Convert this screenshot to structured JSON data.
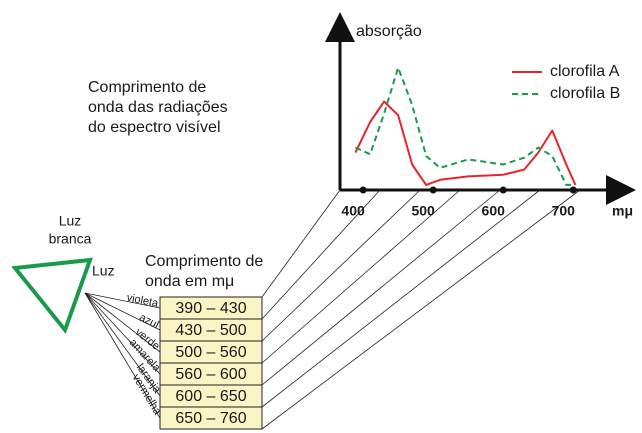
{
  "chart_data": {
    "type": "line",
    "ylabel": "absorção",
    "xlabel": "mμ",
    "x": [
      389,
      410,
      430,
      450,
      470,
      490,
      510,
      550,
      600,
      630,
      650,
      670,
      690,
      703
    ],
    "series": [
      {
        "name": "clorofila A",
        "color": "#e8242b",
        "dash": false,
        "values": [
          22,
          40,
          52,
          44,
          15,
          3,
          6,
          8,
          9,
          12,
          22,
          35,
          15,
          3
        ]
      },
      {
        "name": "clorofila B",
        "color": "#1a9a4a",
        "dash": true,
        "values": [
          25,
          21,
          45,
          72,
          50,
          20,
          13,
          18,
          15,
          19,
          25,
          20,
          3,
          3
        ]
      }
    ],
    "xlim": [
      367,
      781
    ],
    "ylim": [
      0,
      100
    ],
    "xticks": [
      400,
      500,
      600,
      700
    ]
  },
  "caption": [
    "Comprimento de",
    "onda das radiações",
    "do espectro visível"
  ],
  "prism": {
    "label": [
      "Luz",
      "branca"
    ],
    "beam": "Luz"
  },
  "table": {
    "title": [
      "Comprimento de",
      "onda em mμ"
    ],
    "rows": [
      {
        "color": "violeta",
        "range": "390 – 430"
      },
      {
        "color": "azul",
        "range": "430 – 500"
      },
      {
        "color": "verde",
        "range": "500 – 560"
      },
      {
        "color": "amarela",
        "range": "560 – 600"
      },
      {
        "color": "laranja",
        "range": "600 – 650"
      },
      {
        "color": "vermelha",
        "range": "650 – 760"
      }
    ]
  }
}
